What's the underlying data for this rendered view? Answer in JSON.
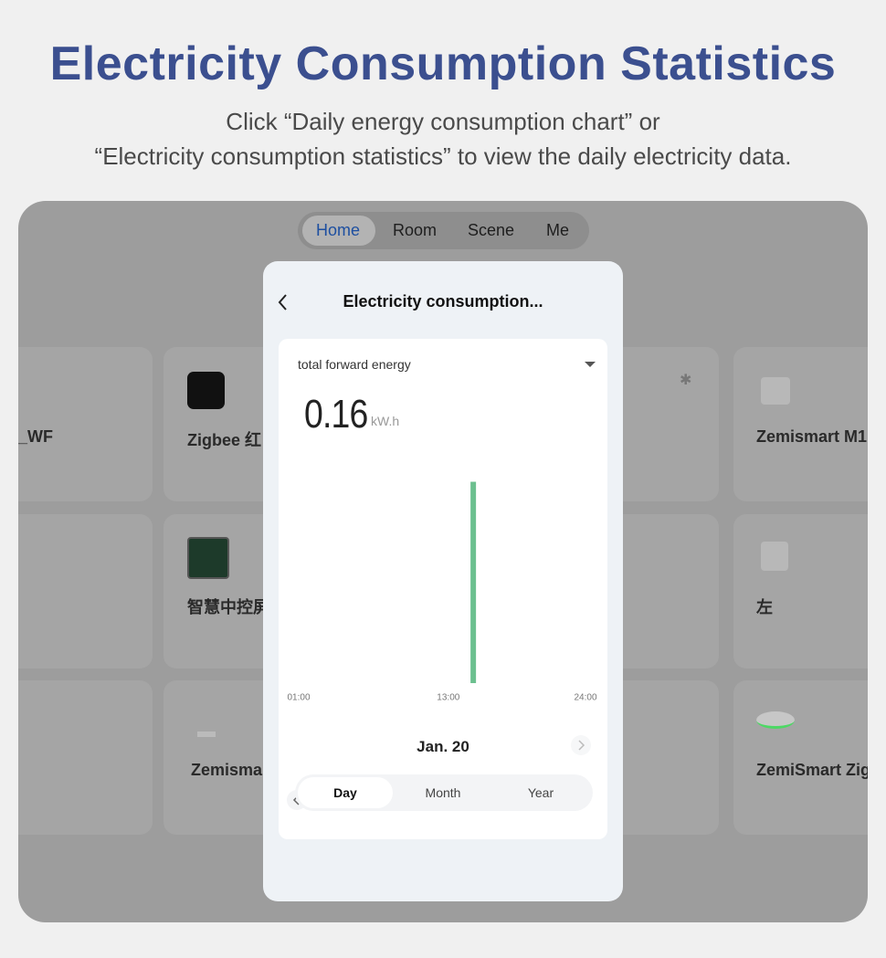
{
  "header": {
    "title": "Electricity Consumption Statistics",
    "subtitle": [
      "Click “Daily energy consumption chart” or",
      "“Electricity consumption statistics” to view the daily electricity data."
    ]
  },
  "tabs": [
    "Home",
    "Room",
    "Scene",
    "Me"
  ],
  "devices": [
    "_WF",
    "Zigbee 红",
    "Zemismart M1",
    "智慧中控屏",
    "左",
    "Zemisma",
    "ZemiSmart Zig"
  ],
  "modal": {
    "title": "Electricity consumption...",
    "metric": "total forward energy",
    "reading": {
      "value": "0.16",
      "unit": "kW.h"
    },
    "date": "Jan. 20",
    "periods": [
      "Day",
      "Month",
      "Year"
    ]
  },
  "chart_data": {
    "type": "bar",
    "x": [
      15
    ],
    "values": [
      0.16
    ],
    "color": "#6cc08f",
    "xlim": [
      1,
      24
    ],
    "xticks": [
      {
        "value": 1,
        "label": "01:00"
      },
      {
        "value": 13,
        "label": "13:00"
      },
      {
        "value": 24,
        "label": "24:00"
      }
    ],
    "ylim": [
      0,
      0.18
    ]
  }
}
